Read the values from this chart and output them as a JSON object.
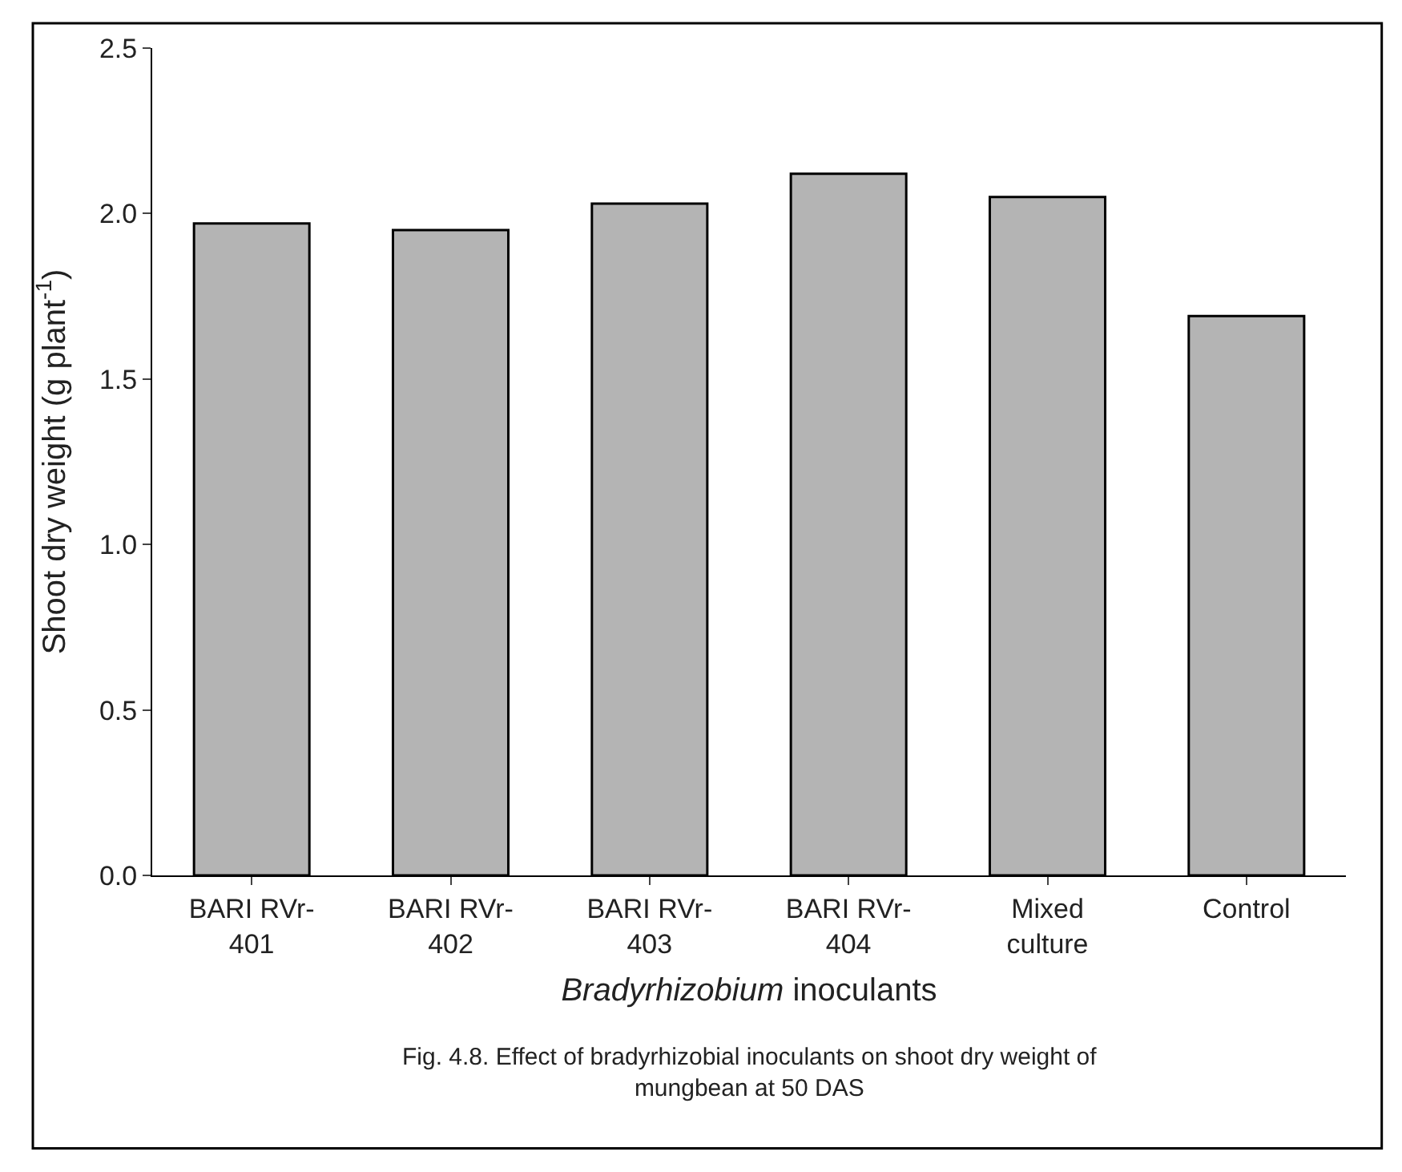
{
  "chart_data": {
    "type": "bar",
    "categories": [
      "BARI RVr-\n401",
      "BARI RVr-\n402",
      "BARI RVr-\n403",
      "BARI RVr-\n404",
      "Mixed\nculture",
      "Control"
    ],
    "values": [
      1.97,
      1.95,
      2.03,
      2.12,
      2.05,
      1.69
    ],
    "color": "#b4b4b4",
    "ylim": [
      0,
      2.5
    ],
    "yticks": [
      {
        "value": 0,
        "label": "0.0"
      },
      {
        "value": 0.5,
        "label": "0.5"
      },
      {
        "value": 1,
        "label": "1.0"
      },
      {
        "value": 1.5,
        "label": "1.5"
      },
      {
        "value": 2,
        "label": "2.0"
      },
      {
        "value": 2.5,
        "label": "2.5"
      }
    ],
    "ylabel": "Shoot dry weight (g plant$^{-1}$)",
    "xlabel": "Bradyrhizobium inoculants",
    "legend": false,
    "annotations": [
      "Fig. 4.8. Effect of bradyrhizobial inoculants on shoot dry weight of\nmungbean at 50 DAS"
    ]
  }
}
